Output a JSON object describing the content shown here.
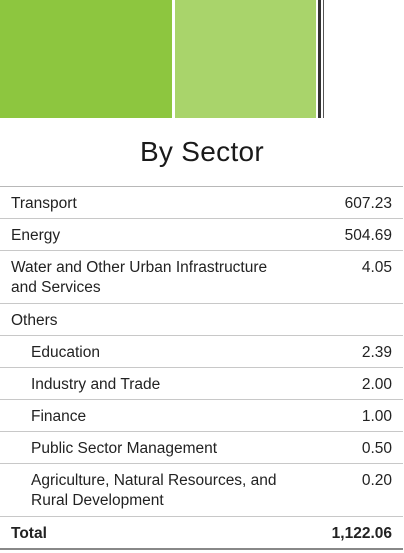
{
  "colors": {
    "banner_dark_green": "#8dc63f",
    "banner_light_green": "#a9d46b"
  },
  "title": "By Sector",
  "table": {
    "rows": [
      {
        "label": "Transport",
        "value": "607.23"
      },
      {
        "label": "Energy",
        "value": "504.69"
      },
      {
        "label": "Water and Other Urban Infrastructure and Services",
        "value": "4.05"
      },
      {
        "label": "Others",
        "value": ""
      },
      {
        "label": "Education",
        "value": "2.39"
      },
      {
        "label": "Industry and Trade",
        "value": "2.00"
      },
      {
        "label": "Finance",
        "value": "1.00"
      },
      {
        "label": "Public Sector Management",
        "value": "0.50"
      },
      {
        "label": "Agriculture, Natural Resources, and Rural Development",
        "value": "0.20"
      }
    ],
    "total": {
      "label": "Total",
      "value": "1,122.06"
    }
  }
}
